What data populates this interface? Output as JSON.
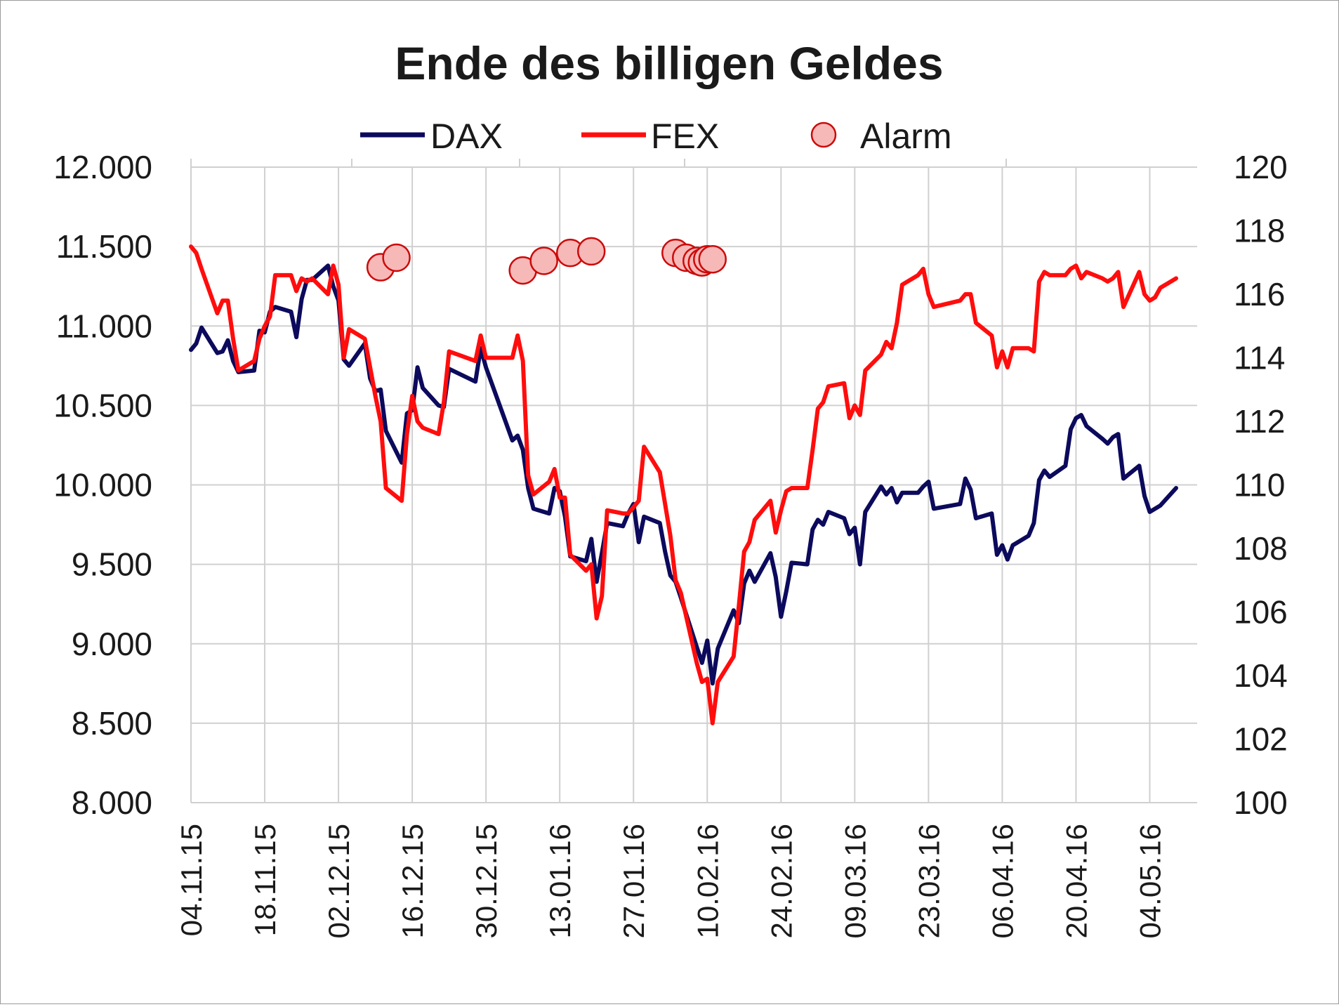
{
  "chart_data": {
    "type": "line",
    "title": "Ende des billigen Geldes",
    "legend": {
      "position": "top",
      "entries": [
        "DAX",
        "FEX",
        "Alarm"
      ]
    },
    "colors": {
      "DAX": "#0c0a5c",
      "FEX": "#ff0d0d",
      "alarm_fill": "#f7b8b8",
      "alarm_stroke": "#cc0a0a",
      "grid": "#d0d0d0"
    },
    "grid": true,
    "x_axis": {
      "type": "date",
      "tick_labels": [
        "04.11.15",
        "18.11.15",
        "02.12.15",
        "16.12.15",
        "30.12.15",
        "13.01.16",
        "27.01.16",
        "10.02.16",
        "24.02.16",
        "09.03.16",
        "23.03.16",
        "06.04.16",
        "20.04.16",
        "04.05.16"
      ],
      "range": [
        "04.11.15",
        "13.05.16"
      ]
    },
    "y_left": {
      "range": [
        8000,
        12000
      ],
      "tick_labels": [
        "8.000",
        "8.500",
        "9.000",
        "9.500",
        "10.000",
        "10.500",
        "11.000",
        "11.500",
        "12.000"
      ],
      "tick_values": [
        8000,
        8500,
        9000,
        9500,
        10000,
        10500,
        11000,
        11500,
        12000
      ]
    },
    "y_right": {
      "range": [
        100,
        120
      ],
      "tick_labels": [
        "100",
        "102",
        "104",
        "106",
        "108",
        "110",
        "112",
        "114",
        "116",
        "118",
        "120"
      ],
      "tick_values": [
        100,
        102,
        104,
        106,
        108,
        110,
        112,
        114,
        116,
        118,
        120
      ]
    },
    "series": [
      {
        "name": "DAX",
        "axis": "left",
        "points": [
          [
            "04.11.15",
            10850
          ],
          [
            "05.11.15",
            10890
          ],
          [
            "06.11.15",
            10990
          ],
          [
            "09.11.15",
            10830
          ],
          [
            "10.11.15",
            10840
          ],
          [
            "11.11.15",
            10910
          ],
          [
            "12.11.15",
            10780
          ],
          [
            "13.11.15",
            10710
          ],
          [
            "16.11.15",
            10720
          ],
          [
            "17.11.15",
            10970
          ],
          [
            "18.11.15",
            10960
          ],
          [
            "19.11.15",
            11090
          ],
          [
            "20.11.15",
            11120
          ],
          [
            "23.11.15",
            11090
          ],
          [
            "24.11.15",
            10930
          ],
          [
            "25.11.15",
            11170
          ],
          [
            "26.11.15",
            11290
          ],
          [
            "27.11.15",
            11290
          ],
          [
            "30.11.15",
            11380
          ],
          [
            "01.12.15",
            11250
          ],
          [
            "02.12.15",
            11160
          ],
          [
            "03.12.15",
            10790
          ],
          [
            "04.12.15",
            10750
          ],
          [
            "07.12.15",
            10890
          ],
          [
            "08.12.15",
            10670
          ],
          [
            "09.12.15",
            10590
          ],
          [
            "10.12.15",
            10600
          ],
          [
            "11.12.15",
            10340
          ],
          [
            "14.12.15",
            10140
          ],
          [
            "15.12.15",
            10450
          ],
          [
            "16.12.15",
            10470
          ],
          [
            "17.12.15",
            10740
          ],
          [
            "18.12.15",
            10610
          ],
          [
            "21.12.15",
            10500
          ],
          [
            "22.12.15",
            10490
          ],
          [
            "23.12.15",
            10730
          ],
          [
            "28.12.15",
            10650
          ],
          [
            "29.12.15",
            10860
          ],
          [
            "30.12.15",
            10740
          ],
          [
            "04.01.16",
            10280
          ],
          [
            "05.01.16",
            10310
          ],
          [
            "06.01.16",
            10220
          ],
          [
            "07.01.16",
            9980
          ],
          [
            "08.01.16",
            9850
          ],
          [
            "11.01.16",
            9820
          ],
          [
            "12.01.16",
            9980
          ],
          [
            "13.01.16",
            9960
          ],
          [
            "14.01.16",
            9800
          ],
          [
            "15.01.16",
            9550
          ],
          [
            "18.01.16",
            9520
          ],
          [
            "19.01.16",
            9660
          ],
          [
            "20.01.16",
            9390
          ],
          [
            "21.01.16",
            9570
          ],
          [
            "22.01.16",
            9760
          ],
          [
            "25.01.16",
            9740
          ],
          [
            "26.01.16",
            9820
          ],
          [
            "27.01.16",
            9880
          ],
          [
            "28.01.16",
            9640
          ],
          [
            "29.01.16",
            9800
          ],
          [
            "01.02.16",
            9760
          ],
          [
            "02.02.16",
            9580
          ],
          [
            "03.02.16",
            9430
          ],
          [
            "04.02.16",
            9390
          ],
          [
            "05.02.16",
            9290
          ],
          [
            "08.02.16",
            8980
          ],
          [
            "09.02.16",
            8880
          ],
          [
            "10.02.16",
            9020
          ],
          [
            "11.02.16",
            8750
          ],
          [
            "12.02.16",
            8970
          ],
          [
            "15.02.16",
            9210
          ],
          [
            "16.02.16",
            9130
          ],
          [
            "17.02.16",
            9380
          ],
          [
            "18.02.16",
            9460
          ],
          [
            "19.02.16",
            9390
          ],
          [
            "22.02.16",
            9570
          ],
          [
            "23.02.16",
            9420
          ],
          [
            "24.02.16",
            9170
          ],
          [
            "25.02.16",
            9330
          ],
          [
            "26.02.16",
            9510
          ],
          [
            "29.02.16",
            9500
          ],
          [
            "01.03.16",
            9720
          ],
          [
            "02.03.16",
            9780
          ],
          [
            "03.03.16",
            9750
          ],
          [
            "04.03.16",
            9830
          ],
          [
            "07.03.16",
            9790
          ],
          [
            "08.03.16",
            9690
          ],
          [
            "09.03.16",
            9730
          ],
          [
            "10.03.16",
            9500
          ],
          [
            "11.03.16",
            9830
          ],
          [
            "14.03.16",
            9990
          ],
          [
            "15.03.16",
            9940
          ],
          [
            "16.03.16",
            9980
          ],
          [
            "17.03.16",
            9890
          ],
          [
            "18.03.16",
            9950
          ],
          [
            "21.03.16",
            9950
          ],
          [
            "22.03.16",
            9990
          ],
          [
            "23.03.16",
            10020
          ],
          [
            "24.03.16",
            9850
          ],
          [
            "29.03.16",
            9880
          ],
          [
            "30.03.16",
            10040
          ],
          [
            "31.03.16",
            9970
          ],
          [
            "01.04.16",
            9790
          ],
          [
            "04.04.16",
            9820
          ],
          [
            "05.04.16",
            9560
          ],
          [
            "06.04.16",
            9620
          ],
          [
            "07.04.16",
            9530
          ],
          [
            "08.04.16",
            9620
          ],
          [
            "11.04.16",
            9680
          ],
          [
            "12.04.16",
            9760
          ],
          [
            "13.04.16",
            10030
          ],
          [
            "14.04.16",
            10090
          ],
          [
            "15.04.16",
            10050
          ],
          [
            "18.04.16",
            10120
          ],
          [
            "19.04.16",
            10350
          ],
          [
            "20.04.16",
            10420
          ],
          [
            "21.04.16",
            10440
          ],
          [
            "22.04.16",
            10370
          ],
          [
            "25.04.16",
            10290
          ],
          [
            "26.04.16",
            10260
          ],
          [
            "27.04.16",
            10300
          ],
          [
            "28.04.16",
            10320
          ],
          [
            "29.04.16",
            10040
          ],
          [
            "02.05.16",
            10120
          ],
          [
            "03.05.16",
            9930
          ],
          [
            "04.05.16",
            9830
          ],
          [
            "05.05.16",
            9850
          ],
          [
            "06.05.16",
            9870
          ],
          [
            "09.05.16",
            9980
          ]
        ]
      },
      {
        "name": "FEX",
        "axis": "right",
        "points": [
          [
            "04.11.15",
            117.5
          ],
          [
            "05.11.15",
            117.3
          ],
          [
            "06.11.15",
            116.8
          ],
          [
            "09.11.15",
            115.4
          ],
          [
            "10.11.15",
            115.8
          ],
          [
            "11.11.15",
            115.8
          ],
          [
            "12.11.15",
            114.6
          ],
          [
            "13.11.15",
            113.6
          ],
          [
            "16.11.15",
            113.9
          ],
          [
            "17.11.15",
            114.6
          ],
          [
            "18.11.15",
            115.0
          ],
          [
            "19.11.15",
            115.3
          ],
          [
            "20.11.15",
            116.6
          ],
          [
            "23.11.15",
            116.6
          ],
          [
            "24.11.15",
            116.1
          ],
          [
            "25.11.15",
            116.5
          ],
          [
            "26.11.15",
            116.4
          ],
          [
            "27.11.15",
            116.5
          ],
          [
            "30.11.15",
            116.0
          ],
          [
            "01.12.15",
            116.9
          ],
          [
            "02.12.15",
            116.3
          ],
          [
            "03.12.15",
            114.0
          ],
          [
            "04.12.15",
            114.9
          ],
          [
            "07.12.15",
            114.6
          ],
          [
            "08.12.15",
            113.7
          ],
          [
            "09.12.15",
            112.8
          ],
          [
            "10.12.15",
            112.0
          ],
          [
            "11.12.15",
            109.9
          ],
          [
            "14.12.15",
            109.5
          ],
          [
            "15.12.15",
            111.6
          ],
          [
            "16.12.15",
            112.8
          ],
          [
            "17.12.15",
            112.0
          ],
          [
            "18.12.15",
            111.8
          ],
          [
            "21.12.15",
            111.6
          ],
          [
            "22.12.15",
            112.6
          ],
          [
            "23.12.15",
            114.2
          ],
          [
            "28.12.15",
            113.9
          ],
          [
            "29.12.15",
            114.7
          ],
          [
            "30.12.15",
            114.0
          ],
          [
            "04.01.16",
            114.0
          ],
          [
            "05.01.16",
            114.7
          ],
          [
            "06.01.16",
            113.9
          ],
          [
            "07.01.16",
            110.3
          ],
          [
            "08.01.16",
            109.7
          ],
          [
            "11.01.16",
            110.1
          ],
          [
            "12.01.16",
            110.5
          ],
          [
            "13.01.16",
            109.6
          ],
          [
            "14.01.16",
            109.6
          ],
          [
            "15.01.16",
            107.8
          ],
          [
            "18.01.16",
            107.3
          ],
          [
            "19.01.16",
            107.5
          ],
          [
            "20.01.16",
            105.8
          ],
          [
            "21.01.16",
            106.5
          ],
          [
            "22.01.16",
            109.2
          ],
          [
            "25.01.16",
            109.1
          ],
          [
            "26.01.16",
            109.1
          ],
          [
            "27.01.16",
            109.3
          ],
          [
            "28.01.16",
            109.5
          ],
          [
            "29.01.16",
            111.2
          ],
          [
            "01.02.16",
            110.4
          ],
          [
            "02.02.16",
            109.4
          ],
          [
            "03.02.16",
            108.4
          ],
          [
            "04.02.16",
            107.0
          ],
          [
            "05.02.16",
            106.6
          ],
          [
            "08.02.16",
            104.4
          ],
          [
            "09.02.16",
            103.8
          ],
          [
            "10.02.16",
            103.9
          ],
          [
            "11.02.16",
            102.5
          ],
          [
            "12.02.16",
            103.8
          ],
          [
            "15.02.16",
            104.6
          ],
          [
            "16.02.16",
            106.2
          ],
          [
            "17.02.16",
            107.9
          ],
          [
            "18.02.16",
            108.2
          ],
          [
            "19.02.16",
            108.9
          ],
          [
            "22.02.16",
            109.5
          ],
          [
            "23.02.16",
            108.5
          ],
          [
            "24.02.16",
            109.2
          ],
          [
            "25.02.16",
            109.8
          ],
          [
            "26.02.16",
            109.9
          ],
          [
            "29.02.16",
            109.9
          ],
          [
            "01.03.16",
            111.1
          ],
          [
            "02.03.16",
            112.4
          ],
          [
            "03.03.16",
            112.6
          ],
          [
            "04.03.16",
            113.1
          ],
          [
            "07.03.16",
            113.2
          ],
          [
            "08.03.16",
            112.1
          ],
          [
            "09.03.16",
            112.5
          ],
          [
            "10.03.16",
            112.2
          ],
          [
            "11.03.16",
            113.6
          ],
          [
            "14.03.16",
            114.1
          ],
          [
            "15.03.16",
            114.5
          ],
          [
            "16.03.16",
            114.3
          ],
          [
            "17.03.16",
            115.1
          ],
          [
            "18.03.16",
            116.3
          ],
          [
            "21.03.16",
            116.6
          ],
          [
            "22.03.16",
            116.8
          ],
          [
            "23.03.16",
            116.0
          ],
          [
            "24.03.16",
            115.6
          ],
          [
            "29.03.16",
            115.8
          ],
          [
            "30.03.16",
            116.0
          ],
          [
            "31.03.16",
            116.0
          ],
          [
            "01.04.16",
            115.1
          ],
          [
            "04.04.16",
            114.7
          ],
          [
            "05.04.16",
            113.7
          ],
          [
            "06.04.16",
            114.2
          ],
          [
            "07.04.16",
            113.7
          ],
          [
            "08.04.16",
            114.3
          ],
          [
            "11.04.16",
            114.3
          ],
          [
            "12.04.16",
            114.2
          ],
          [
            "13.04.16",
            116.4
          ],
          [
            "14.04.16",
            116.7
          ],
          [
            "15.04.16",
            116.6
          ],
          [
            "18.04.16",
            116.6
          ],
          [
            "19.04.16",
            116.8
          ],
          [
            "20.04.16",
            116.9
          ],
          [
            "21.04.16",
            116.5
          ],
          [
            "22.04.16",
            116.7
          ],
          [
            "25.04.16",
            116.5
          ],
          [
            "26.04.16",
            116.4
          ],
          [
            "27.04.16",
            116.5
          ],
          [
            "28.04.16",
            116.7
          ],
          [
            "29.04.16",
            115.6
          ],
          [
            "02.05.16",
            116.7
          ],
          [
            "03.05.16",
            116.0
          ],
          [
            "04.05.16",
            115.8
          ],
          [
            "05.05.16",
            115.9
          ],
          [
            "06.05.16",
            116.2
          ],
          [
            "09.05.16",
            116.5
          ]
        ]
      },
      {
        "name": "Alarm",
        "axis": "left",
        "marker": "circle",
        "points": [
          [
            "10.12.15",
            11370
          ],
          [
            "13.12.15",
            11430
          ],
          [
            "06.01.16",
            11350
          ],
          [
            "10.01.16",
            11410
          ],
          [
            "15.01.16",
            11460
          ],
          [
            "19.01.16",
            11470
          ],
          [
            "04.02.16",
            11460
          ],
          [
            "06.02.16",
            11430
          ],
          [
            "08.02.16",
            11410
          ],
          [
            "09.02.16",
            11400
          ],
          [
            "10.02.16",
            11420
          ],
          [
            "11.02.16",
            11420
          ]
        ]
      }
    ]
  }
}
